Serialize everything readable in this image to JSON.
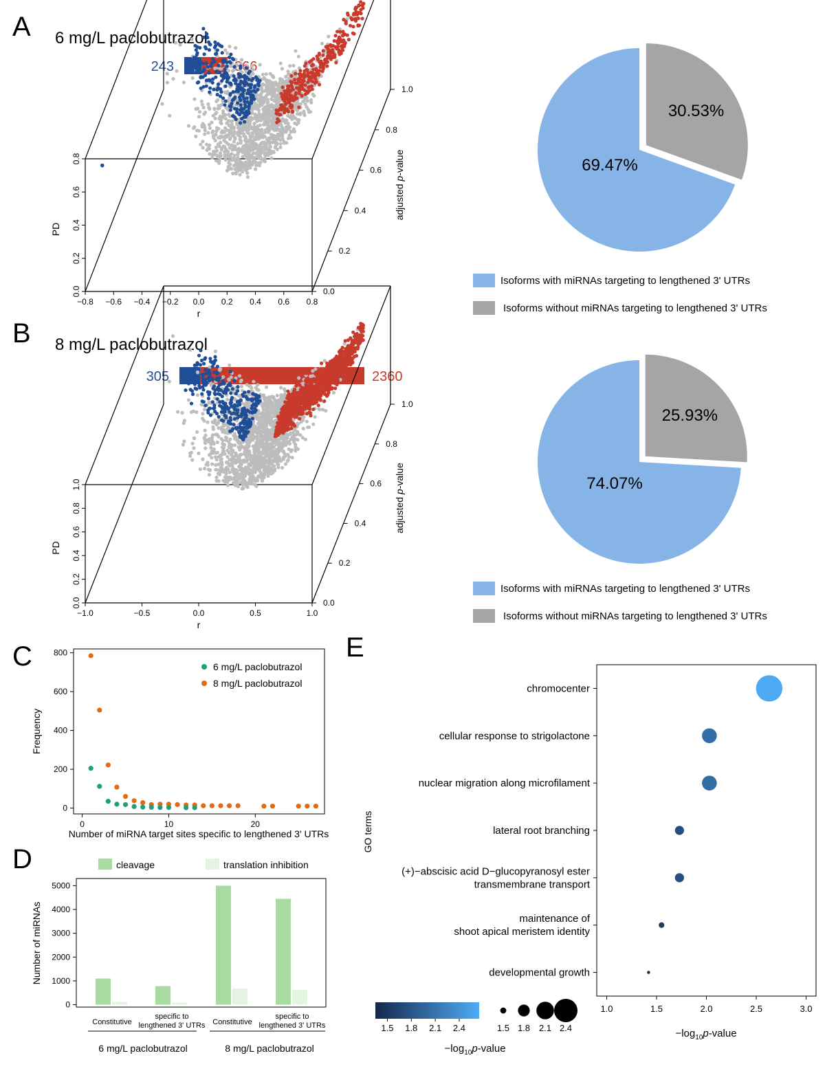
{
  "colors": {
    "blue": "#1f4e96",
    "red": "#c83a2c",
    "grey": "#bdbdbd",
    "pie_blue": "#86b4e6",
    "pie_grey": "#a5a5a5",
    "green": "#1f9e7c",
    "orange": "#e26a12",
    "cleav": "#a6dca1",
    "trans": "#e3f5e0",
    "go_dark": "#14284b",
    "go_light": "#4eacf5"
  },
  "chart_data": [
    {
      "panel": "A",
      "type": "scatter",
      "title": "6 mg/L paclobutrazol",
      "bar_counts": {
        "down": 243,
        "up": 366
      },
      "xlabel": "r",
      "ylabel": "PD",
      "zlabel": "adjusted p-value",
      "xticks": [
        -0.8,
        -0.6,
        -0.4,
        -0.2,
        0.0,
        0.2,
        0.4,
        0.6,
        0.8
      ],
      "xticklabels": [
        "−0.8",
        "−0.6",
        "−0.4",
        "−0.2",
        "0.0",
        "0.2",
        "0.4",
        "0.6",
        "0.8"
      ],
      "yticks": [
        0.0,
        0.2,
        0.4,
        0.6,
        0.8
      ],
      "yticklabels": [
        "0.0",
        "0.2",
        "0.4",
        "0.6",
        "0.8"
      ],
      "zticks": [
        0.0,
        0.2,
        0.4,
        0.6,
        0.8,
        1.0
      ],
      "zticklabels": [
        "0.0",
        "0.2",
        "0.4",
        "0.6",
        "0.8",
        "1.0"
      ],
      "xlim": [
        -0.8,
        0.8
      ],
      "ylim": [
        0,
        0.8
      ],
      "zlim": [
        0,
        1
      ],
      "outlier": {
        "x": -0.68,
        "y": 0.76
      }
    },
    {
      "panel": "A",
      "type": "pie",
      "slices": [
        {
          "label": "Isoforms with miRNAs targeting to lengthened 3' UTRs",
          "value": 69.47,
          "text": "69.47%"
        },
        {
          "label": "Isoforms without miRNAs targeting to lengthened 3' UTRs",
          "value": 30.53,
          "text": "30.53%"
        }
      ]
    },
    {
      "panel": "B",
      "type": "scatter",
      "title": "8 mg/L paclobutrazol",
      "bar_counts": {
        "down": 305,
        "up": 2360
      },
      "xlabel": "r",
      "ylabel": "PD",
      "zlabel": "adjusted p-value",
      "xticks": [
        -1.0,
        -0.5,
        0.0,
        0.5,
        1.0
      ],
      "xticklabels": [
        "−1.0",
        "−0.5",
        "0.0",
        "0.5",
        "1.0"
      ],
      "yticks": [
        0.0,
        0.2,
        0.4,
        0.6,
        0.8,
        1.0
      ],
      "yticklabels": [
        "0.0",
        "0.2",
        "0.4",
        "0.6",
        "0.8",
        "1.0"
      ],
      "zticks": [
        0.0,
        0.2,
        0.4,
        0.6,
        0.8,
        1.0
      ],
      "zticklabels": [
        "0.0",
        "0.2",
        "0.4",
        "0.6",
        "0.8",
        "1.0"
      ],
      "xlim": [
        -1,
        1
      ],
      "ylim": [
        0,
        1
      ],
      "zlim": [
        0,
        1
      ]
    },
    {
      "panel": "B",
      "type": "pie",
      "slices": [
        {
          "label": "Isoforms with miRNAs targeting to lengthened 3' UTRs",
          "value": 74.07,
          "text": "74.07%"
        },
        {
          "label": "Isoforms without miRNAs targeting to lengthened 3' UTRs",
          "value": 25.93,
          "text": "25.93%"
        }
      ]
    },
    {
      "panel": "C",
      "type": "scatter",
      "xlabel": "Number of miRNA target sites specific to lengthened 3' UTRs",
      "ylabel": "Frequency",
      "xlim": [
        -1,
        28
      ],
      "ylim": [
        -30,
        820
      ],
      "xticks": [
        0,
        10,
        20
      ],
      "yticks": [
        0,
        200,
        400,
        600,
        800
      ],
      "series": [
        {
          "name": "6 mg/L paclobutrazol",
          "points": [
            [
              1,
              205
            ],
            [
              2,
              112
            ],
            [
              3,
              35
            ],
            [
              4,
              20
            ],
            [
              5,
              18
            ],
            [
              6,
              8
            ],
            [
              7,
              5
            ],
            [
              8,
              4
            ],
            [
              9,
              3
            ],
            [
              10,
              3
            ],
            [
              12,
              2
            ],
            [
              13,
              2
            ]
          ]
        },
        {
          "name": "8 mg/L paclobutrazol",
          "points": [
            [
              1,
              785
            ],
            [
              2,
              505
            ],
            [
              3,
              222
            ],
            [
              4,
              108
            ],
            [
              5,
              60
            ],
            [
              6,
              38
            ],
            [
              7,
              28
            ],
            [
              8,
              18
            ],
            [
              9,
              20
            ],
            [
              10,
              20
            ],
            [
              11,
              18
            ],
            [
              12,
              16
            ],
            [
              13,
              16
            ],
            [
              14,
              12
            ],
            [
              15,
              12
            ],
            [
              16,
              12
            ],
            [
              17,
              12
            ],
            [
              18,
              12
            ],
            [
              21,
              10
            ],
            [
              22,
              10
            ],
            [
              25,
              10
            ],
            [
              26,
              10
            ],
            [
              27,
              10
            ]
          ]
        }
      ]
    },
    {
      "panel": "D",
      "type": "bar",
      "ylabel": "Number of miRNAs",
      "ylim": [
        -100,
        5300
      ],
      "yticks": [
        0,
        1000,
        2000,
        3000,
        4000,
        5000
      ],
      "series": [
        {
          "name": "cleavage",
          "values": [
            1100,
            780,
            5000,
            4450
          ]
        },
        {
          "name": "translation inhibition",
          "values": [
            120,
            90,
            680,
            620
          ]
        }
      ],
      "categories": [
        "Constitutive",
        "specific to lengthened 3' UTRs",
        "Constitutive",
        "specific to lengthened 3' UTRs"
      ],
      "category_lines": [
        [
          "Constitutive"
        ],
        [
          "specific to",
          "lengthened 3' UTRs"
        ],
        [
          "Constitutive"
        ],
        [
          "specific to",
          "lengthened 3' UTRs"
        ]
      ],
      "groups": [
        "6 mg/L paclobutrazol",
        "8 mg/L paclobutrazol"
      ]
    },
    {
      "panel": "E",
      "type": "scatter",
      "xlabel": "−log10p-value",
      "ylabel": "GO terms",
      "xlim": [
        0.9,
        3.1
      ],
      "xticks": [
        1.0,
        1.5,
        2.0,
        2.5,
        3.0
      ],
      "terms": [
        {
          "lines": [
            "chromocenter"
          ],
          "value": 2.63
        },
        {
          "lines": [
            "cellular response to strigolactone"
          ],
          "value": 2.03
        },
        {
          "lines": [
            "nuclear migration along microfilament"
          ],
          "value": 2.03
        },
        {
          "lines": [
            "lateral root branching"
          ],
          "value": 1.73
        },
        {
          "lines": [
            "(+)−abscisic acid D−glucopyranosyl ester",
            "transmembrane transport"
          ],
          "value": 1.73
        },
        {
          "lines": [
            "maintenance of",
            "shoot apical meristem identity"
          ],
          "value": 1.55
        },
        {
          "lines": [
            "developmental growth"
          ],
          "value": 1.42
        }
      ],
      "color_legend": {
        "ticks": [
          "1.5",
          "1.8",
          "2.1",
          "2.4"
        ],
        "min": 1.35,
        "max": 2.65
      },
      "size_legend": {
        "labels": [
          "1.5",
          "1.8",
          "2.1",
          "2.4"
        ],
        "values": [
          1.5,
          1.8,
          2.1,
          2.4
        ]
      }
    }
  ]
}
